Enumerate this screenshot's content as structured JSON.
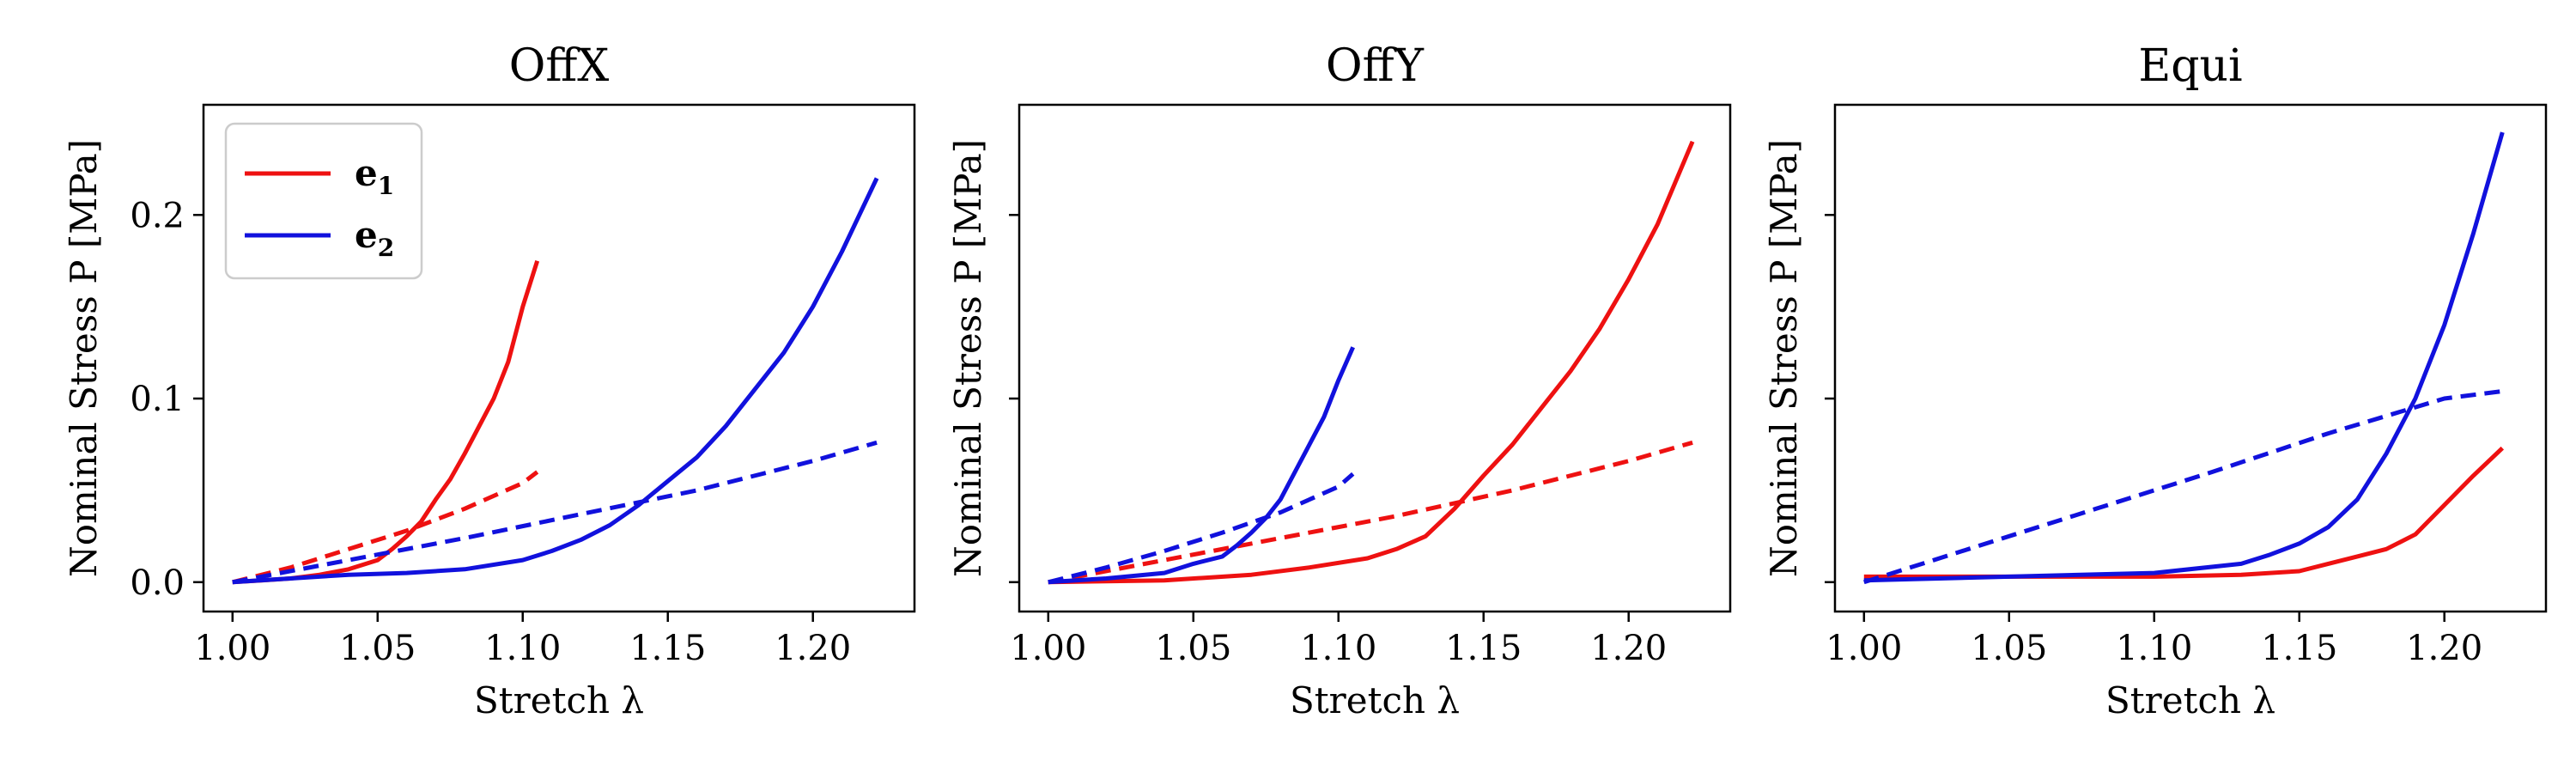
{
  "chart_data": [
    {
      "type": "line",
      "title": "OffX",
      "xlabel": "Stretch λ",
      "ylabel": "Nominal Stress P [MPa]",
      "xlim": [
        0.99,
        1.235
      ],
      "ylim": [
        -0.016,
        0.26
      ],
      "xticks": [
        1.0,
        1.05,
        1.1,
        1.15,
        1.2
      ],
      "yticks": [
        0.0,
        0.1,
        0.2
      ],
      "show_ytick_labels": true,
      "grid": false,
      "legend": {
        "placement": "top-left",
        "entries": [
          {
            "label": "e",
            "subscript": "1",
            "color": "#ee1111"
          },
          {
            "label": "e",
            "subscript": "2",
            "color": "#1111dd"
          }
        ]
      },
      "series": [
        {
          "color": "#ee1111",
          "style": "solid",
          "x": [
            1.0,
            1.01,
            1.02,
            1.03,
            1.04,
            1.05,
            1.055,
            1.06,
            1.065,
            1.07,
            1.075,
            1.08,
            1.085,
            1.09,
            1.095,
            1.1,
            1.105
          ],
          "y": [
            0.0,
            0.001,
            0.002,
            0.004,
            0.007,
            0.012,
            0.018,
            0.025,
            0.033,
            0.045,
            0.056,
            0.07,
            0.085,
            0.1,
            0.12,
            0.15,
            0.175
          ]
        },
        {
          "color": "#ee1111",
          "style": "dashed",
          "x": [
            1.0,
            1.02,
            1.04,
            1.06,
            1.08,
            1.1,
            1.105
          ],
          "y": [
            0.0,
            0.008,
            0.018,
            0.028,
            0.04,
            0.054,
            0.06
          ]
        },
        {
          "color": "#1111dd",
          "style": "solid",
          "x": [
            1.0,
            1.02,
            1.04,
            1.06,
            1.08,
            1.1,
            1.11,
            1.12,
            1.13,
            1.14,
            1.15,
            1.16,
            1.17,
            1.18,
            1.19,
            1.2,
            1.21,
            1.222
          ],
          "y": [
            0.0,
            0.002,
            0.004,
            0.005,
            0.007,
            0.012,
            0.017,
            0.023,
            0.031,
            0.042,
            0.055,
            0.068,
            0.085,
            0.105,
            0.125,
            0.15,
            0.18,
            0.22
          ]
        },
        {
          "color": "#1111dd",
          "style": "dashed",
          "x": [
            1.0,
            1.04,
            1.08,
            1.12,
            1.16,
            1.2,
            1.222
          ],
          "y": [
            0.0,
            0.012,
            0.024,
            0.037,
            0.05,
            0.066,
            0.076
          ]
        }
      ]
    },
    {
      "type": "line",
      "title": "OffY",
      "xlabel": "Stretch λ",
      "ylabel": "Nominal Stress P [MPa]",
      "xlim": [
        0.99,
        1.235
      ],
      "ylim": [
        -0.016,
        0.26
      ],
      "xticks": [
        1.0,
        1.05,
        1.1,
        1.15,
        1.2
      ],
      "yticks": [
        0.0,
        0.1,
        0.2
      ],
      "show_ytick_labels": false,
      "grid": false,
      "series": [
        {
          "color": "#ee1111",
          "style": "solid",
          "x": [
            1.0,
            1.04,
            1.07,
            1.09,
            1.11,
            1.12,
            1.13,
            1.14,
            1.15,
            1.16,
            1.17,
            1.18,
            1.19,
            1.2,
            1.21,
            1.222
          ],
          "y": [
            0.0,
            0.001,
            0.004,
            0.008,
            0.013,
            0.018,
            0.025,
            0.04,
            0.058,
            0.075,
            0.095,
            0.115,
            0.138,
            0.165,
            0.195,
            0.24
          ]
        },
        {
          "color": "#ee1111",
          "style": "dashed",
          "x": [
            1.0,
            1.04,
            1.08,
            1.12,
            1.16,
            1.2,
            1.222
          ],
          "y": [
            0.0,
            0.012,
            0.024,
            0.036,
            0.05,
            0.066,
            0.076
          ]
        },
        {
          "color": "#1111dd",
          "style": "solid",
          "x": [
            1.0,
            1.02,
            1.04,
            1.05,
            1.06,
            1.065,
            1.07,
            1.075,
            1.08,
            1.085,
            1.09,
            1.095,
            1.1,
            1.105
          ],
          "y": [
            0.0,
            0.002,
            0.005,
            0.01,
            0.014,
            0.02,
            0.027,
            0.035,
            0.045,
            0.06,
            0.075,
            0.09,
            0.11,
            0.128
          ]
        },
        {
          "color": "#1111dd",
          "style": "dashed",
          "x": [
            1.0,
            1.02,
            1.04,
            1.06,
            1.08,
            1.1,
            1.105
          ],
          "y": [
            0.0,
            0.008,
            0.017,
            0.027,
            0.038,
            0.052,
            0.059
          ]
        }
      ]
    },
    {
      "type": "line",
      "title": "Equi",
      "xlabel": "Stretch λ",
      "ylabel": "Nominal Stress P [MPa]",
      "xlim": [
        0.99,
        1.235
      ],
      "ylim": [
        -0.016,
        0.26
      ],
      "xticks": [
        1.0,
        1.05,
        1.1,
        1.15,
        1.2
      ],
      "yticks": [
        0.0,
        0.1,
        0.2
      ],
      "show_ytick_labels": false,
      "grid": false,
      "series": [
        {
          "color": "#ee1111",
          "style": "solid",
          "x": [
            1.0,
            1.05,
            1.1,
            1.13,
            1.15,
            1.16,
            1.17,
            1.18,
            1.19,
            1.2,
            1.21,
            1.22
          ],
          "y": [
            0.003,
            0.003,
            0.003,
            0.004,
            0.006,
            0.01,
            0.014,
            0.018,
            0.026,
            0.042,
            0.058,
            0.073
          ]
        },
        {
          "color": "#1111dd",
          "style": "dashed",
          "x": [
            1.0,
            1.04,
            1.08,
            1.12,
            1.16,
            1.2,
            1.22
          ],
          "y": [
            0.0,
            0.02,
            0.04,
            0.06,
            0.081,
            0.1,
            0.104
          ]
        },
        {
          "color": "#1111dd",
          "style": "solid",
          "x": [
            1.0,
            1.05,
            1.1,
            1.13,
            1.14,
            1.15,
            1.16,
            1.17,
            1.18,
            1.19,
            1.2,
            1.21,
            1.22
          ],
          "y": [
            0.001,
            0.003,
            0.005,
            0.01,
            0.015,
            0.021,
            0.03,
            0.045,
            0.07,
            0.1,
            0.14,
            0.19,
            0.245
          ]
        }
      ]
    }
  ]
}
